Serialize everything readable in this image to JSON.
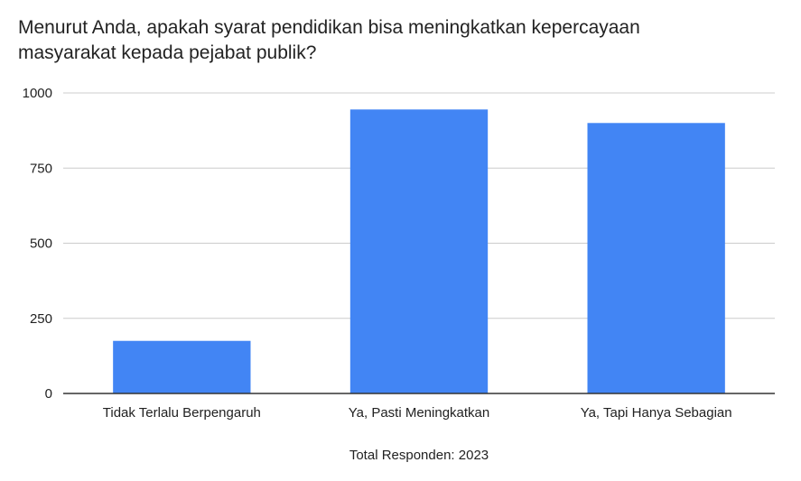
{
  "chart_data": {
    "type": "bar",
    "title": "Menurut Anda, apakah syarat pendidikan bisa meningkatkan kepercayaan masyarakat kepada pejabat publik?",
    "categories": [
      "Tidak Terlalu Berpengaruh",
      "Ya, Pasti Meningkatkan",
      "Ya, Tapi Hanya Sebagian"
    ],
    "values": [
      175,
      945,
      900
    ],
    "xlabel": "Total Responden: 2023",
    "ylabel": "",
    "ylim": [
      0,
      1000
    ],
    "yticks": [
      "0",
      "250",
      "500",
      "750",
      "1000"
    ],
    "grid": true,
    "legend": "none",
    "colors": {
      "bar": "#4285f4",
      "grid": "#cccccc",
      "axis": "#333333"
    }
  }
}
